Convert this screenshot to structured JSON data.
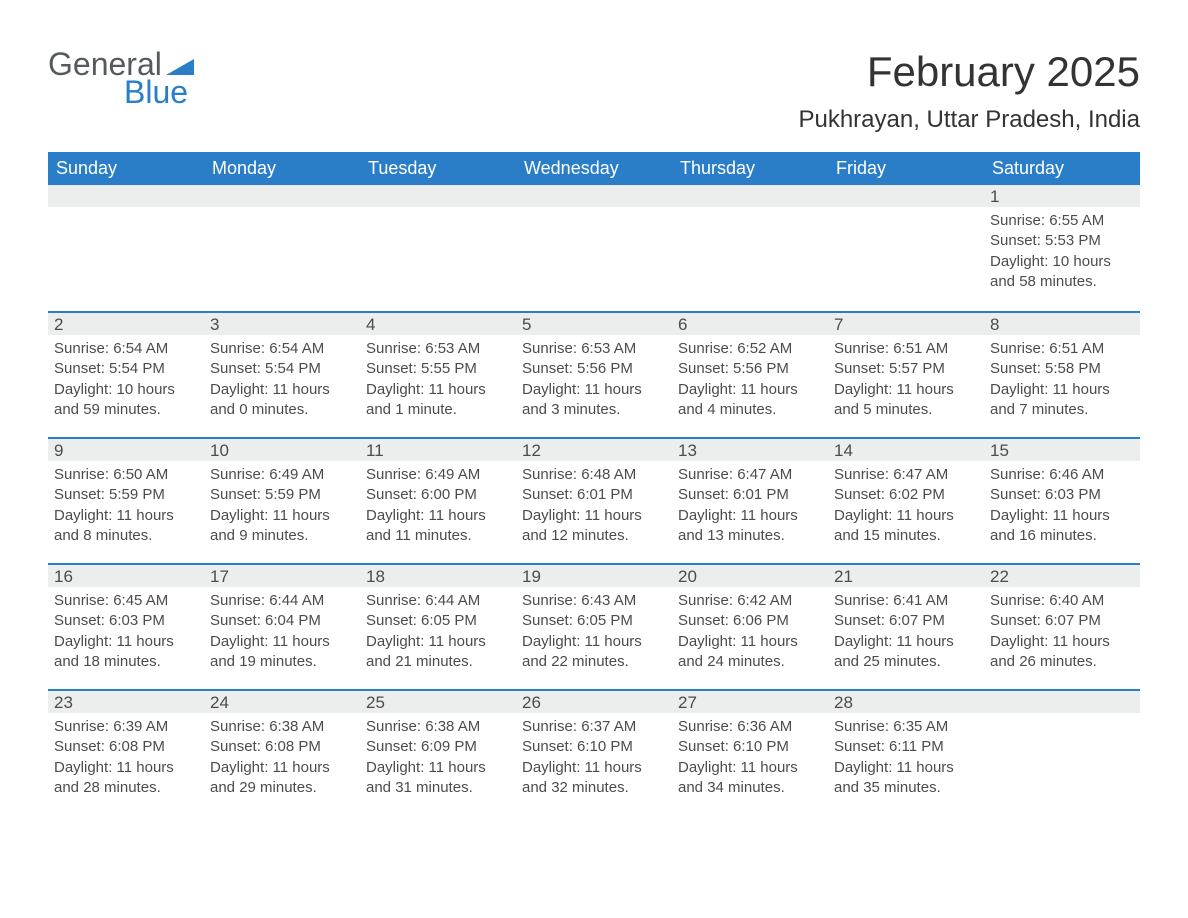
{
  "logo": {
    "word1": "General",
    "word2": "Blue"
  },
  "header": {
    "month_title": "February 2025",
    "location": "Pukhrayan, Uttar Pradesh, India"
  },
  "colors": {
    "header_bg": "#2a7ec8",
    "header_text": "#ffffff",
    "row_border": "#2a7ec8",
    "daynum_bg": "#eceded",
    "body_text": "#4c4c4c",
    "logo_gray": "#555a5e",
    "logo_blue": "#2a7ec8"
  },
  "day_headers": [
    "Sunday",
    "Monday",
    "Tuesday",
    "Wednesday",
    "Thursday",
    "Friday",
    "Saturday"
  ],
  "weeks": [
    [
      {
        "day": "",
        "sunrise": "",
        "sunset": "",
        "daylight": ""
      },
      {
        "day": "",
        "sunrise": "",
        "sunset": "",
        "daylight": ""
      },
      {
        "day": "",
        "sunrise": "",
        "sunset": "",
        "daylight": ""
      },
      {
        "day": "",
        "sunrise": "",
        "sunset": "",
        "daylight": ""
      },
      {
        "day": "",
        "sunrise": "",
        "sunset": "",
        "daylight": ""
      },
      {
        "day": "",
        "sunrise": "",
        "sunset": "",
        "daylight": ""
      },
      {
        "day": "1",
        "sunrise": "Sunrise: 6:55 AM",
        "sunset": "Sunset: 5:53 PM",
        "daylight": "Daylight: 10 hours and 58 minutes."
      }
    ],
    [
      {
        "day": "2",
        "sunrise": "Sunrise: 6:54 AM",
        "sunset": "Sunset: 5:54 PM",
        "daylight": "Daylight: 10 hours and 59 minutes."
      },
      {
        "day": "3",
        "sunrise": "Sunrise: 6:54 AM",
        "sunset": "Sunset: 5:54 PM",
        "daylight": "Daylight: 11 hours and 0 minutes."
      },
      {
        "day": "4",
        "sunrise": "Sunrise: 6:53 AM",
        "sunset": "Sunset: 5:55 PM",
        "daylight": "Daylight: 11 hours and 1 minute."
      },
      {
        "day": "5",
        "sunrise": "Sunrise: 6:53 AM",
        "sunset": "Sunset: 5:56 PM",
        "daylight": "Daylight: 11 hours and 3 minutes."
      },
      {
        "day": "6",
        "sunrise": "Sunrise: 6:52 AM",
        "sunset": "Sunset: 5:56 PM",
        "daylight": "Daylight: 11 hours and 4 minutes."
      },
      {
        "day": "7",
        "sunrise": "Sunrise: 6:51 AM",
        "sunset": "Sunset: 5:57 PM",
        "daylight": "Daylight: 11 hours and 5 minutes."
      },
      {
        "day": "8",
        "sunrise": "Sunrise: 6:51 AM",
        "sunset": "Sunset: 5:58 PM",
        "daylight": "Daylight: 11 hours and 7 minutes."
      }
    ],
    [
      {
        "day": "9",
        "sunrise": "Sunrise: 6:50 AM",
        "sunset": "Sunset: 5:59 PM",
        "daylight": "Daylight: 11 hours and 8 minutes."
      },
      {
        "day": "10",
        "sunrise": "Sunrise: 6:49 AM",
        "sunset": "Sunset: 5:59 PM",
        "daylight": "Daylight: 11 hours and 9 minutes."
      },
      {
        "day": "11",
        "sunrise": "Sunrise: 6:49 AM",
        "sunset": "Sunset: 6:00 PM",
        "daylight": "Daylight: 11 hours and 11 minutes."
      },
      {
        "day": "12",
        "sunrise": "Sunrise: 6:48 AM",
        "sunset": "Sunset: 6:01 PM",
        "daylight": "Daylight: 11 hours and 12 minutes."
      },
      {
        "day": "13",
        "sunrise": "Sunrise: 6:47 AM",
        "sunset": "Sunset: 6:01 PM",
        "daylight": "Daylight: 11 hours and 13 minutes."
      },
      {
        "day": "14",
        "sunrise": "Sunrise: 6:47 AM",
        "sunset": "Sunset: 6:02 PM",
        "daylight": "Daylight: 11 hours and 15 minutes."
      },
      {
        "day": "15",
        "sunrise": "Sunrise: 6:46 AM",
        "sunset": "Sunset: 6:03 PM",
        "daylight": "Daylight: 11 hours and 16 minutes."
      }
    ],
    [
      {
        "day": "16",
        "sunrise": "Sunrise: 6:45 AM",
        "sunset": "Sunset: 6:03 PM",
        "daylight": "Daylight: 11 hours and 18 minutes."
      },
      {
        "day": "17",
        "sunrise": "Sunrise: 6:44 AM",
        "sunset": "Sunset: 6:04 PM",
        "daylight": "Daylight: 11 hours and 19 minutes."
      },
      {
        "day": "18",
        "sunrise": "Sunrise: 6:44 AM",
        "sunset": "Sunset: 6:05 PM",
        "daylight": "Daylight: 11 hours and 21 minutes."
      },
      {
        "day": "19",
        "sunrise": "Sunrise: 6:43 AM",
        "sunset": "Sunset: 6:05 PM",
        "daylight": "Daylight: 11 hours and 22 minutes."
      },
      {
        "day": "20",
        "sunrise": "Sunrise: 6:42 AM",
        "sunset": "Sunset: 6:06 PM",
        "daylight": "Daylight: 11 hours and 24 minutes."
      },
      {
        "day": "21",
        "sunrise": "Sunrise: 6:41 AM",
        "sunset": "Sunset: 6:07 PM",
        "daylight": "Daylight: 11 hours and 25 minutes."
      },
      {
        "day": "22",
        "sunrise": "Sunrise: 6:40 AM",
        "sunset": "Sunset: 6:07 PM",
        "daylight": "Daylight: 11 hours and 26 minutes."
      }
    ],
    [
      {
        "day": "23",
        "sunrise": "Sunrise: 6:39 AM",
        "sunset": "Sunset: 6:08 PM",
        "daylight": "Daylight: 11 hours and 28 minutes."
      },
      {
        "day": "24",
        "sunrise": "Sunrise: 6:38 AM",
        "sunset": "Sunset: 6:08 PM",
        "daylight": "Daylight: 11 hours and 29 minutes."
      },
      {
        "day": "25",
        "sunrise": "Sunrise: 6:38 AM",
        "sunset": "Sunset: 6:09 PM",
        "daylight": "Daylight: 11 hours and 31 minutes."
      },
      {
        "day": "26",
        "sunrise": "Sunrise: 6:37 AM",
        "sunset": "Sunset: 6:10 PM",
        "daylight": "Daylight: 11 hours and 32 minutes."
      },
      {
        "day": "27",
        "sunrise": "Sunrise: 6:36 AM",
        "sunset": "Sunset: 6:10 PM",
        "daylight": "Daylight: 11 hours and 34 minutes."
      },
      {
        "day": "28",
        "sunrise": "Sunrise: 6:35 AM",
        "sunset": "Sunset: 6:11 PM",
        "daylight": "Daylight: 11 hours and 35 minutes."
      },
      {
        "day": "",
        "sunrise": "",
        "sunset": "",
        "daylight": ""
      }
    ]
  ]
}
